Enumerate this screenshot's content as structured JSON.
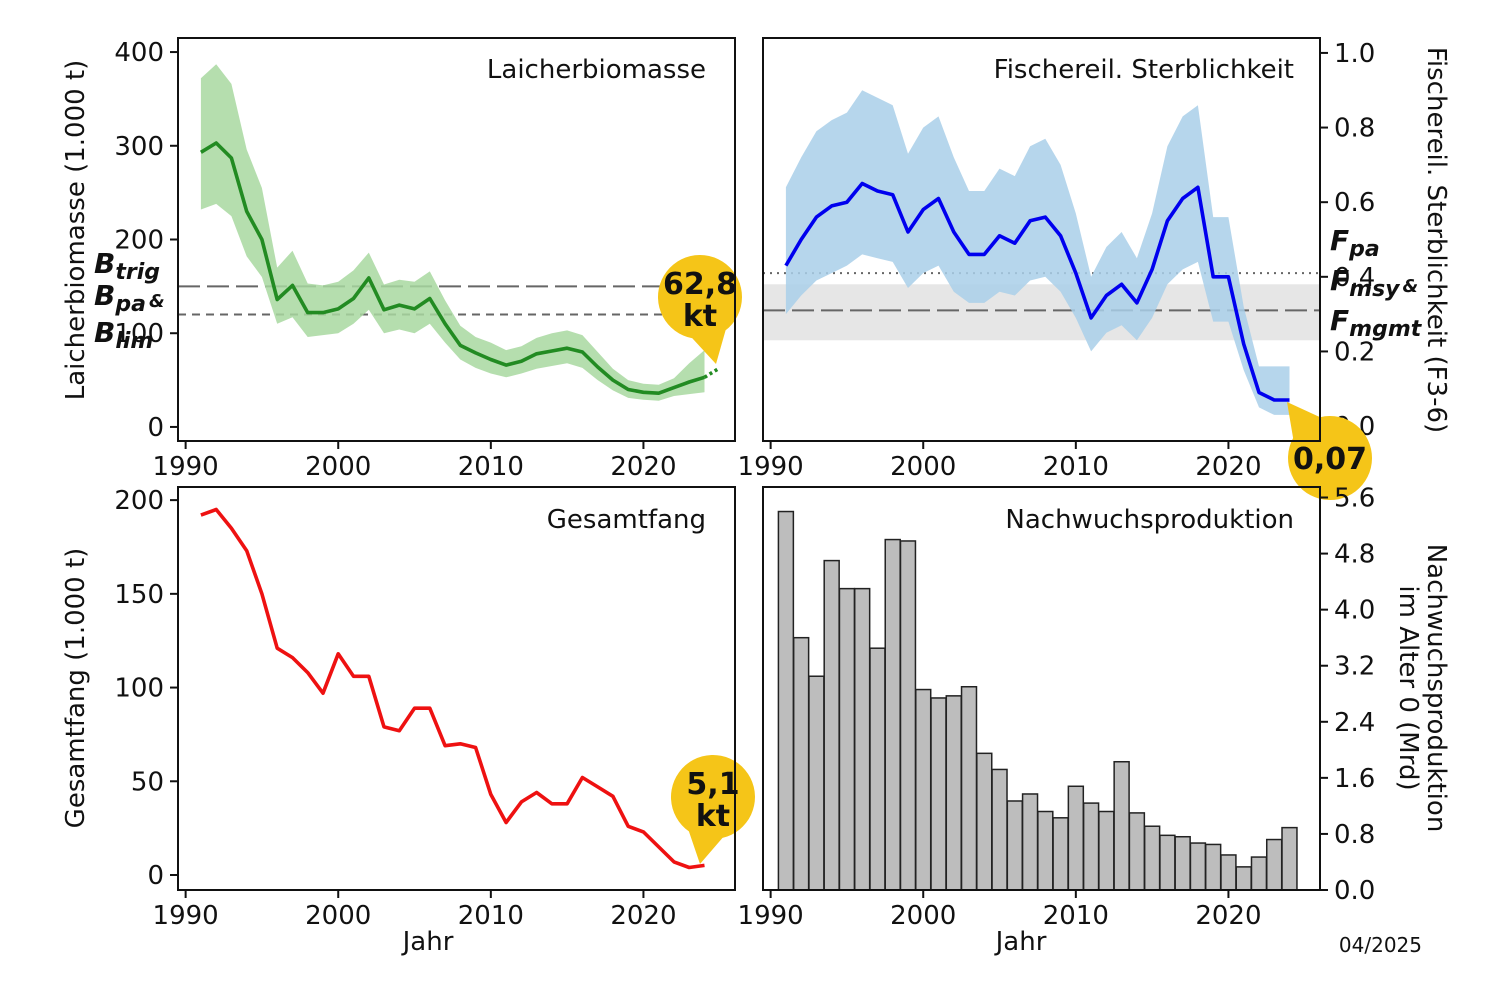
{
  "chart_data": [
    {
      "type": "line",
      "title": "Laicherbiomasse",
      "xlabel": "",
      "ylabel": "Laicherbiomasse (1.000 t)",
      "xlim": [
        1989.5,
        2026
      ],
      "ylim": [
        -15,
        415
      ],
      "xticks": [
        "1990",
        "2000",
        "2010",
        "2020"
      ],
      "yticks": [
        "0",
        "100",
        "200",
        "300",
        "400"
      ],
      "grid": false,
      "series": [
        {
          "color": "#228b22",
          "x": [
            1991,
            1992,
            1993,
            1994,
            1995,
            1996,
            1997,
            1998,
            1999,
            2000,
            2001,
            2002,
            2003,
            2004,
            2005,
            2006,
            2007,
            2008,
            2009,
            2010,
            2011,
            2012,
            2013,
            2014,
            2015,
            2016,
            2017,
            2018,
            2019,
            2020,
            2021,
            2022,
            2023,
            2024
          ],
          "values": [
            293,
            303,
            287,
            230,
            200,
            136,
            151,
            122,
            122,
            126,
            137,
            159,
            125,
            130,
            126,
            137,
            110,
            87,
            79,
            72,
            66,
            70,
            78,
            81,
            84,
            80,
            64,
            50,
            40,
            37,
            36,
            42,
            48,
            53
          ],
          "lower": [
            232,
            238,
            225,
            182,
            160,
            110,
            117,
            96,
            98,
            100,
            110,
            125,
            100,
            104,
            100,
            110,
            90,
            72,
            63,
            57,
            53,
            57,
            62,
            65,
            68,
            63,
            50,
            39,
            31,
            29,
            28,
            33,
            35,
            37
          ],
          "upper": [
            372,
            387,
            366,
            296,
            255,
            170,
            188,
            153,
            151,
            155,
            167,
            186,
            152,
            157,
            155,
            166,
            135,
            108,
            96,
            90,
            82,
            86,
            95,
            100,
            103,
            98,
            80,
            62,
            50,
            46,
            45,
            52,
            68,
            82
          ]
        }
      ],
      "forecast": {
        "x": [
          2024,
          2025
        ],
        "values": [
          53,
          63
        ],
        "style": "dotted"
      },
      "reference_lines": [
        {
          "y": 150,
          "style": "long-dash",
          "color": "#666666"
        },
        {
          "y": 120,
          "style": "short-dash",
          "color": "#666666"
        }
      ],
      "reference_labels": [
        {
          "main": "B",
          "sub": "trig"
        },
        {
          "main": "B",
          "sub": "pa",
          "suffix": "&"
        },
        {
          "main": "B",
          "sub": "lim"
        }
      ],
      "callout": {
        "lines": [
          "62,8",
          "kt"
        ],
        "color": "#f5c518"
      }
    },
    {
      "type": "line",
      "title": "Fischereil. Sterblichkeit",
      "xlabel": "",
      "ylabel": "Fischereil. Sterblichkeit (F3-6)",
      "ylabel_position": "right",
      "xlim": [
        1989.5,
        2026
      ],
      "ylim": [
        -0.04,
        1.04
      ],
      "xticks": [
        "1990",
        "2000",
        "2010",
        "2020"
      ],
      "yticks": [
        "0.0",
        "0.2",
        "0.4",
        "0.6",
        "0.8",
        "1.0"
      ],
      "grid": false,
      "series": [
        {
          "color": "#0000ee",
          "x": [
            1991,
            1992,
            1993,
            1994,
            1995,
            1996,
            1997,
            1998,
            1999,
            2000,
            2001,
            2002,
            2003,
            2004,
            2005,
            2006,
            2007,
            2008,
            2009,
            2010,
            2011,
            2012,
            2013,
            2014,
            2015,
            2016,
            2017,
            2018,
            2019,
            2020,
            2021,
            2022,
            2023,
            2024
          ],
          "values": [
            0.43,
            0.5,
            0.56,
            0.59,
            0.6,
            0.65,
            0.63,
            0.62,
            0.52,
            0.58,
            0.61,
            0.52,
            0.46,
            0.46,
            0.51,
            0.49,
            0.55,
            0.56,
            0.51,
            0.41,
            0.29,
            0.35,
            0.38,
            0.33,
            0.42,
            0.55,
            0.61,
            0.64,
            0.4,
            0.4,
            0.22,
            0.09,
            0.07,
            0.07
          ],
          "lower": [
            0.3,
            0.35,
            0.39,
            0.41,
            0.43,
            0.46,
            0.45,
            0.44,
            0.37,
            0.41,
            0.43,
            0.36,
            0.33,
            0.33,
            0.36,
            0.35,
            0.39,
            0.4,
            0.36,
            0.29,
            0.2,
            0.25,
            0.27,
            0.23,
            0.29,
            0.38,
            0.42,
            0.44,
            0.28,
            0.28,
            0.15,
            0.05,
            0.03,
            0.03
          ],
          "upper": [
            0.64,
            0.72,
            0.79,
            0.82,
            0.84,
            0.9,
            0.88,
            0.86,
            0.73,
            0.8,
            0.83,
            0.72,
            0.63,
            0.63,
            0.69,
            0.67,
            0.75,
            0.77,
            0.7,
            0.57,
            0.4,
            0.48,
            0.52,
            0.45,
            0.57,
            0.75,
            0.83,
            0.86,
            0.56,
            0.56,
            0.32,
            0.16,
            0.16,
            0.16
          ]
        }
      ],
      "reference_lines": [
        {
          "y": 0.41,
          "style": "dotted",
          "color": "#666666"
        },
        {
          "y": 0.31,
          "style": "long-dash",
          "color": "#666666"
        }
      ],
      "reference_band": {
        "y": [
          0.23,
          0.38
        ],
        "color": "#e6e6e6"
      },
      "reference_labels": [
        {
          "main": "F",
          "sub": "pa"
        },
        {
          "main": "F",
          "sub": "msy",
          "suffix": "&"
        },
        {
          "main": "F",
          "sub": "mgmt"
        }
      ],
      "callout": {
        "lines": [
          "0,07"
        ],
        "color": "#f5c518"
      }
    },
    {
      "type": "line",
      "title": "Gesamtfang",
      "xlabel": "Jahr",
      "ylabel": "Gesamtfang (1.000 t)",
      "xlim": [
        1989.5,
        2026
      ],
      "ylim": [
        -8,
        207
      ],
      "xticks": [
        "1990",
        "2000",
        "2010",
        "2020"
      ],
      "yticks": [
        "0",
        "50",
        "100",
        "150",
        "200"
      ],
      "grid": false,
      "series": [
        {
          "color": "#ee1111",
          "x": [
            1991,
            1992,
            1993,
            1994,
            1995,
            1996,
            1997,
            1998,
            1999,
            2000,
            2001,
            2002,
            2003,
            2004,
            2005,
            2006,
            2007,
            2008,
            2009,
            2010,
            2011,
            2012,
            2013,
            2014,
            2015,
            2016,
            2017,
            2018,
            2019,
            2020,
            2021,
            2022,
            2023,
            2024
          ],
          "values": [
            192,
            195,
            185,
            173,
            150,
            121,
            116,
            108,
            97,
            118,
            106,
            106,
            79,
            77,
            89,
            89,
            69,
            70,
            68,
            43,
            28,
            39,
            44,
            38,
            38,
            52,
            47,
            42,
            26,
            23,
            15,
            7,
            4,
            5.1
          ]
        }
      ],
      "callout": {
        "lines": [
          "5,1",
          "kt"
        ],
        "color": "#f5c518"
      }
    },
    {
      "type": "bar",
      "title": "Nachwuchsproduktion",
      "xlabel": "Jahr",
      "ylabel": "Nachwuchsproduktion im Alter 0 (Mrd)",
      "ylabel_lines": [
        "Nachwuchsproduktion",
        "im Alter 0 (Mrd)"
      ],
      "ylabel_position": "right",
      "xlim": [
        1989.5,
        2026
      ],
      "ylim": [
        0,
        5.75
      ],
      "xticks": [
        "1990",
        "2000",
        "2010",
        "2020"
      ],
      "yticks": [
        "0.0",
        "0.8",
        "1.6",
        "2.4",
        "3.2",
        "4.0",
        "4.8",
        "5.6"
      ],
      "grid": false,
      "bar_color": "#bdbdbd",
      "categories": [
        1991,
        1992,
        1993,
        1994,
        1995,
        1996,
        1997,
        1998,
        1999,
        2000,
        2001,
        2002,
        2003,
        2004,
        2005,
        2006,
        2007,
        2008,
        2009,
        2010,
        2011,
        2012,
        2013,
        2014,
        2015,
        2016,
        2017,
        2018,
        2019,
        2020,
        2021,
        2022,
        2023,
        2024
      ],
      "values": [
        5.4,
        3.6,
        3.05,
        4.7,
        4.3,
        4.3,
        3.45,
        5.0,
        4.98,
        2.86,
        2.74,
        2.77,
        2.9,
        1.95,
        1.72,
        1.27,
        1.37,
        1.12,
        1.03,
        1.48,
        1.24,
        1.12,
        1.83,
        1.1,
        0.91,
        0.78,
        0.76,
        0.67,
        0.65,
        0.5,
        0.33,
        0.47,
        0.72,
        0.89
      ]
    }
  ],
  "footer": {
    "date_stamp": "04/2025"
  }
}
